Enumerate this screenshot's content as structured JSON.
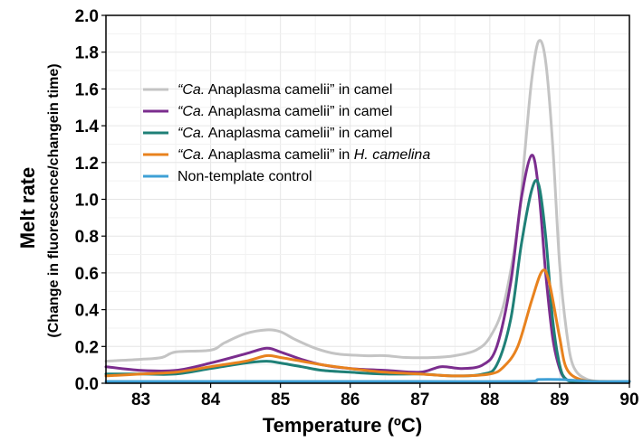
{
  "chart_data": {
    "type": "line",
    "title": "",
    "xlabel": "Temperature (ºC)",
    "ylabel": "Melt rate",
    "ylabel2": "(Change in fluorescence/changein time)",
    "xlim": [
      82.5,
      90
    ],
    "ylim": [
      0,
      2.0
    ],
    "xticks": [
      "83",
      "84",
      "85",
      "86",
      "87",
      "88",
      "89",
      "90"
    ],
    "yticks": [
      "0.0",
      "0.2",
      "0.4",
      "0.6",
      "0.8",
      "1.0",
      "1.2",
      "1.4",
      "1.6",
      "1.8",
      "2.0"
    ],
    "grid": true,
    "legend_position": "upper-left",
    "series": [
      {
        "name": "“Ca. Anaplasma camelii” in camel",
        "legend_italic": "“Ca.",
        "legend_rest": " Anaplasma camelii” in camel",
        "color": "#c4c4c4",
        "points": [
          [
            82.5,
            0.12
          ],
          [
            83.0,
            0.13
          ],
          [
            83.3,
            0.14
          ],
          [
            83.5,
            0.17
          ],
          [
            84.0,
            0.18
          ],
          [
            84.2,
            0.22
          ],
          [
            84.5,
            0.27
          ],
          [
            84.8,
            0.29
          ],
          [
            85.0,
            0.28
          ],
          [
            85.2,
            0.24
          ],
          [
            85.5,
            0.19
          ],
          [
            85.8,
            0.16
          ],
          [
            86.2,
            0.15
          ],
          [
            86.5,
            0.15
          ],
          [
            86.8,
            0.14
          ],
          [
            87.2,
            0.14
          ],
          [
            87.5,
            0.15
          ],
          [
            87.8,
            0.18
          ],
          [
            88.0,
            0.25
          ],
          [
            88.2,
            0.43
          ],
          [
            88.4,
            0.85
          ],
          [
            88.5,
            1.25
          ],
          [
            88.6,
            1.65
          ],
          [
            88.7,
            1.86
          ],
          [
            88.8,
            1.75
          ],
          [
            88.9,
            1.3
          ],
          [
            89.0,
            0.65
          ],
          [
            89.1,
            0.28
          ],
          [
            89.2,
            0.09
          ],
          [
            89.4,
            0.02
          ],
          [
            89.7,
            0.01
          ],
          [
            90.0,
            0.01
          ]
        ]
      },
      {
        "name": "“Ca. Anaplasma camelii” in camel",
        "legend_italic": "“Ca.",
        "legend_rest": " Anaplasma camelii” in camel",
        "color": "#7b2d8e",
        "points": [
          [
            82.5,
            0.09
          ],
          [
            83.0,
            0.07
          ],
          [
            83.5,
            0.07
          ],
          [
            84.0,
            0.11
          ],
          [
            84.5,
            0.16
          ],
          [
            84.8,
            0.19
          ],
          [
            85.0,
            0.17
          ],
          [
            85.3,
            0.13
          ],
          [
            85.6,
            0.1
          ],
          [
            86.0,
            0.08
          ],
          [
            86.5,
            0.07
          ],
          [
            87.0,
            0.06
          ],
          [
            87.3,
            0.09
          ],
          [
            87.6,
            0.08
          ],
          [
            87.9,
            0.1
          ],
          [
            88.1,
            0.2
          ],
          [
            88.3,
            0.55
          ],
          [
            88.45,
            1.0
          ],
          [
            88.6,
            1.24
          ],
          [
            88.7,
            1.05
          ],
          [
            88.8,
            0.6
          ],
          [
            88.9,
            0.25
          ],
          [
            89.0,
            0.08
          ],
          [
            89.1,
            0.02
          ],
          [
            89.3,
            0.01
          ],
          [
            90.0,
            0.01
          ]
        ]
      },
      {
        "name": "“Ca. Anaplasma camelii” in camel",
        "legend_italic": "“Ca.",
        "legend_rest": " Anaplasma camelii” in camel",
        "color": "#1f8077",
        "points": [
          [
            82.5,
            0.05
          ],
          [
            83.0,
            0.05
          ],
          [
            83.5,
            0.05
          ],
          [
            84.0,
            0.08
          ],
          [
            84.5,
            0.11
          ],
          [
            84.8,
            0.12
          ],
          [
            85.0,
            0.11
          ],
          [
            85.3,
            0.09
          ],
          [
            85.6,
            0.07
          ],
          [
            86.0,
            0.06
          ],
          [
            86.5,
            0.05
          ],
          [
            87.0,
            0.05
          ],
          [
            87.5,
            0.04
          ],
          [
            87.9,
            0.05
          ],
          [
            88.1,
            0.1
          ],
          [
            88.3,
            0.35
          ],
          [
            88.45,
            0.75
          ],
          [
            88.6,
            1.05
          ],
          [
            88.7,
            1.08
          ],
          [
            88.8,
            0.8
          ],
          [
            88.9,
            0.35
          ],
          [
            89.0,
            0.1
          ],
          [
            89.1,
            0.02
          ],
          [
            89.3,
            0.01
          ],
          [
            90.0,
            0.01
          ]
        ]
      },
      {
        "name": "“Ca. Anaplasma camelii” in H. camelina",
        "legend_italic": "“Ca.",
        "legend_rest": " Anaplasma camelii” in ",
        "legend_italic2": "H. camelina",
        "color": "#e8821e",
        "points": [
          [
            82.5,
            0.04
          ],
          [
            83.0,
            0.05
          ],
          [
            83.5,
            0.06
          ],
          [
            84.0,
            0.09
          ],
          [
            84.5,
            0.12
          ],
          [
            84.8,
            0.15
          ],
          [
            85.0,
            0.14
          ],
          [
            85.3,
            0.12
          ],
          [
            85.6,
            0.1
          ],
          [
            86.0,
            0.08
          ],
          [
            86.5,
            0.06
          ],
          [
            87.0,
            0.05
          ],
          [
            87.5,
            0.04
          ],
          [
            88.0,
            0.05
          ],
          [
            88.2,
            0.09
          ],
          [
            88.4,
            0.2
          ],
          [
            88.6,
            0.45
          ],
          [
            88.75,
            0.61
          ],
          [
            88.85,
            0.55
          ],
          [
            89.0,
            0.25
          ],
          [
            89.1,
            0.08
          ],
          [
            89.3,
            0.02
          ],
          [
            89.6,
            0.01
          ],
          [
            90.0,
            0.01
          ]
        ]
      },
      {
        "name": "Non-template control",
        "legend_italic": "",
        "legend_rest": "Non-template control",
        "color": "#3fa0d6",
        "points": [
          [
            82.5,
            0.01
          ],
          [
            84.0,
            0.01
          ],
          [
            85.5,
            0.01
          ],
          [
            87.0,
            0.01
          ],
          [
            88.5,
            0.01
          ],
          [
            88.7,
            0.02
          ],
          [
            89.0,
            0.02
          ],
          [
            89.5,
            0.01
          ],
          [
            90.0,
            0.01
          ]
        ]
      }
    ]
  }
}
